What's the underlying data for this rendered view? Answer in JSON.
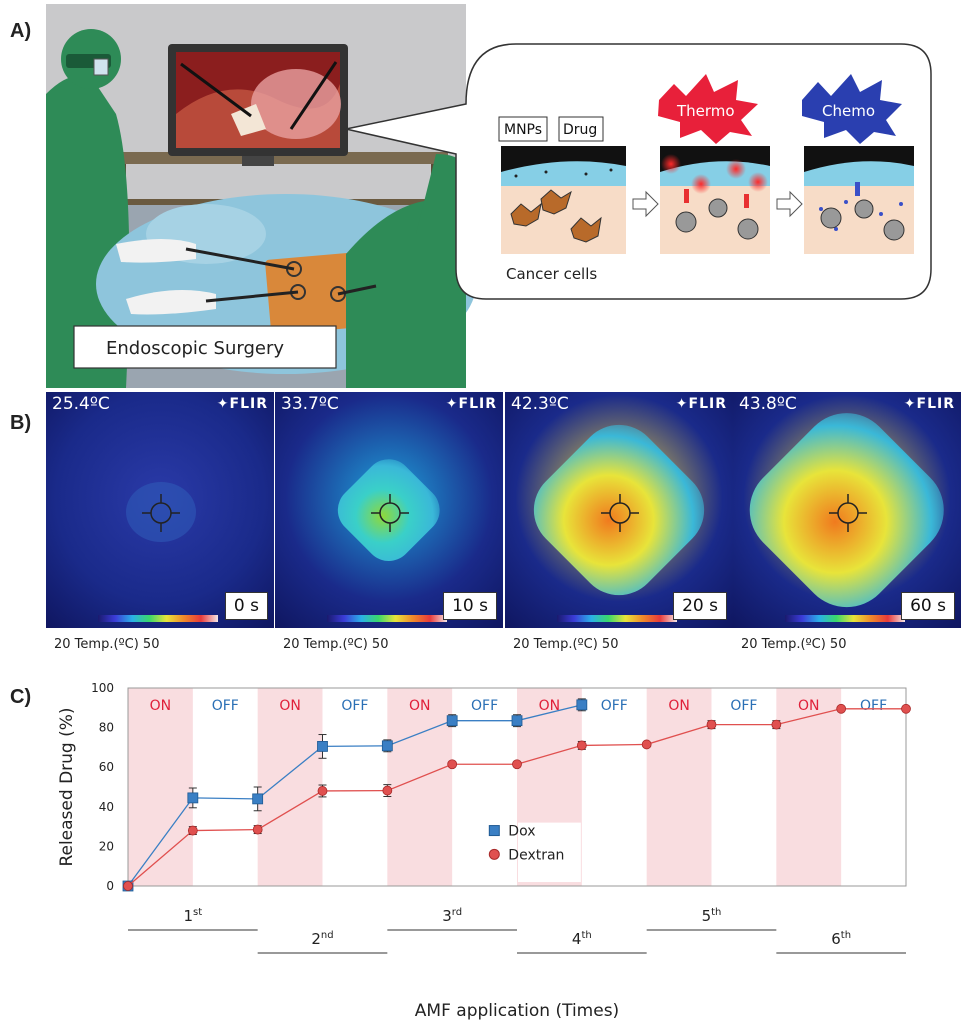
{
  "panels": {
    "a": "A)",
    "b": "B)",
    "c": "C)"
  },
  "illustration": {
    "surgery_label": "Endoscopic Surgery",
    "mnps_label": "MNPs",
    "drug_label": "Drug",
    "cancer_label": "Cancer cells",
    "thermo_label": "Thermo",
    "chemo_label": "Chemo"
  },
  "thermal_images": [
    {
      "temp": "25.4ºC",
      "time": "0 s",
      "logo": "FLIR",
      "heat": 0.0
    },
    {
      "temp": "33.7ºC",
      "time": "10 s",
      "logo": "FLIR",
      "heat": 0.35
    },
    {
      "temp": "42.3ºC",
      "time": "20 s",
      "logo": "FLIR",
      "heat": 0.8
    },
    {
      "temp": "43.8ºC",
      "time": "60 s",
      "logo": "FLIR",
      "heat": 0.95
    }
  ],
  "scale_caption": "20  Temp.(ºC)  50",
  "colors": {
    "on_band": "#f9dde0",
    "dox": "#3a7fc4",
    "dextran": "#e0504f",
    "on_text": "#e0203a",
    "off_text": "#2a6fb5"
  },
  "chart_data": {
    "type": "line",
    "ylabel": "Released Drug (%)",
    "xlabel": "AMF application (Times)",
    "ylim": [
      0,
      100
    ],
    "yticks": [
      "0",
      "20",
      "40",
      "60",
      "80",
      "100"
    ],
    "band_labels": [
      "ON",
      "OFF",
      "ON",
      "OFF",
      "ON",
      "OFF",
      "ON",
      "OFF",
      "ON",
      "OFF",
      "ON",
      "OFF"
    ],
    "application_labels": [
      {
        "num": "1",
        "sup": "st"
      },
      {
        "num": "2",
        "sup": "nd"
      },
      {
        "num": "3",
        "sup": "rd"
      },
      {
        "num": "4",
        "sup": "th"
      },
      {
        "num": "5",
        "sup": "th"
      },
      {
        "num": "6",
        "sup": "th"
      }
    ],
    "series": [
      {
        "name": "Dox",
        "x": [
          0,
          1,
          2,
          3,
          4,
          5,
          6,
          7
        ],
        "y": [
          0,
          44.5,
          44,
          70.5,
          70.8,
          83.5,
          83.5,
          91.5
        ],
        "err": [
          0,
          5,
          6,
          6,
          3,
          3,
          3,
          3
        ]
      },
      {
        "name": "Dextran",
        "x": [
          0,
          1,
          2,
          3,
          4,
          5,
          6,
          7,
          8,
          9,
          10,
          11,
          12
        ],
        "y": [
          0,
          28,
          28.5,
          48,
          48.2,
          61.5,
          61.5,
          71,
          71.5,
          81.5,
          81.5,
          89.5,
          89.5
        ],
        "err": [
          0,
          2,
          2,
          3,
          3,
          1,
          1,
          2,
          1,
          2,
          2,
          1,
          1
        ]
      }
    ]
  }
}
